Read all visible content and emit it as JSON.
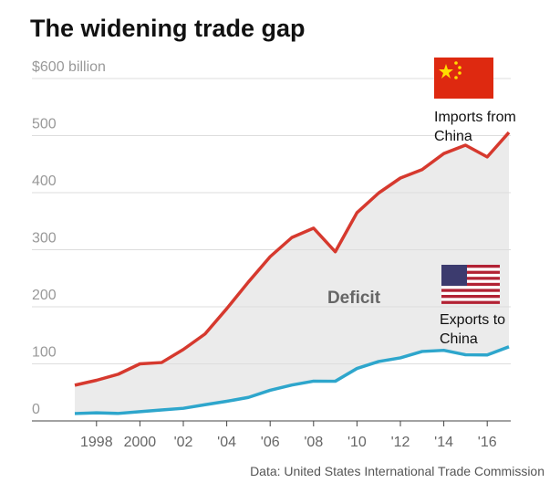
{
  "chart_data": {
    "type": "line",
    "title": "The widening trade gap",
    "source": "Data: United States International Trade Commission",
    "annotation": "Deficit",
    "x": [
      1997,
      1998,
      1999,
      2000,
      2001,
      2002,
      2003,
      2004,
      2005,
      2006,
      2007,
      2008,
      2009,
      2010,
      2011,
      2012,
      2013,
      2014,
      2015,
      2016,
      2017
    ],
    "series": [
      {
        "name": "Imports from China",
        "color": "#d6392e",
        "values": [
          62.6,
          71.2,
          81.8,
          100.0,
          102.3,
          125.2,
          152.4,
          196.7,
          243.5,
          287.8,
          321.4,
          337.8,
          296.4,
          364.9,
          399.4,
          425.6,
          440.4,
          468.5,
          483.2,
          462.6,
          505.5
        ]
      },
      {
        "name": "Exports to China",
        "color": "#2ea6cc",
        "values": [
          12.9,
          14.2,
          13.1,
          16.2,
          19.2,
          22.1,
          28.4,
          34.4,
          41.2,
          53.7,
          62.9,
          69.7,
          69.5,
          91.9,
          104.1,
          110.5,
          121.7,
          123.7,
          115.9,
          115.6,
          129.9
        ]
      }
    ],
    "fill_between": "#ebebeb",
    "xlim": [
      1997,
      2017
    ],
    "xticks": [
      1998,
      2000,
      {
        "value": 2002,
        "label": "'02"
      },
      {
        "value": 2004,
        "label": "'04"
      },
      {
        "value": 2006,
        "label": "'06"
      },
      {
        "value": 2008,
        "label": "'08"
      },
      {
        "value": 2010,
        "label": "'10"
      },
      {
        "value": 2012,
        "label": "'12"
      },
      {
        "value": 2014,
        "label": "'14"
      },
      {
        "value": 2016,
        "label": "'16"
      }
    ],
    "ylim": [
      0,
      600
    ],
    "yticks": [
      0,
      100,
      200,
      300,
      400,
      500,
      {
        "value": 600,
        "label": "$600 billion"
      }
    ],
    "grid": true
  }
}
